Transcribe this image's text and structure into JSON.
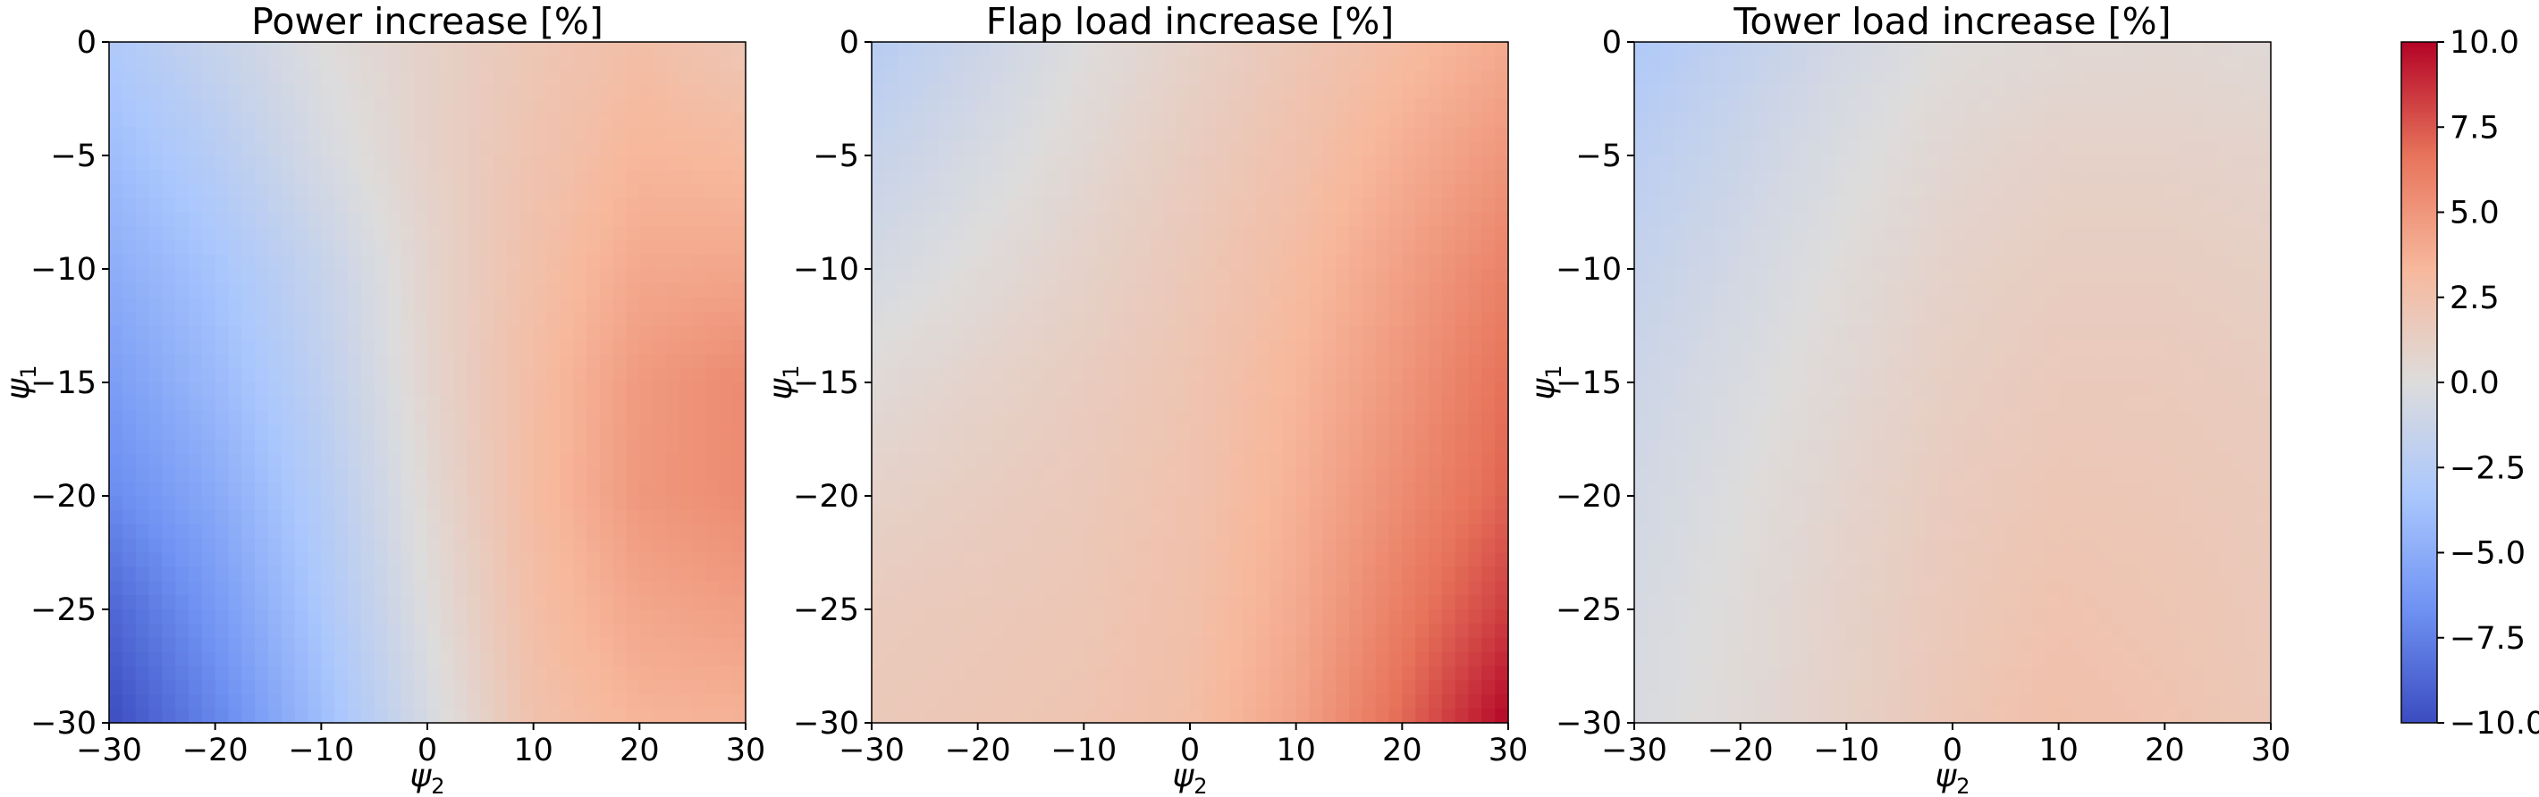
{
  "chart_data": [
    {
      "type": "heatmap",
      "title": "Power increase [%]",
      "xlabel": "ψ",
      "xlabel_sub": "2",
      "ylabel": "ψ",
      "ylabel_sub": "1",
      "xlim": [
        -30,
        30
      ],
      "ylim": [
        -30,
        0
      ],
      "x": [
        -30,
        -20,
        -10,
        0,
        10,
        20,
        30
      ],
      "y": [
        0,
        -5,
        -10,
        -15,
        -20,
        -25,
        -30
      ],
      "z": [
        [
          -3.0,
          -1.5,
          0.0,
          1.0,
          2.0,
          2.8,
          2.0
        ],
        [
          -4.0,
          -2.5,
          -0.5,
          1.0,
          2.3,
          3.4,
          3.2
        ],
        [
          -5.0,
          -3.5,
          -1.5,
          0.8,
          2.6,
          4.1,
          4.2
        ],
        [
          -6.0,
          -4.2,
          -2.0,
          0.7,
          2.9,
          4.8,
          5.6
        ],
        [
          -7.0,
          -5.2,
          -2.6,
          0.4,
          3.0,
          4.9,
          5.5
        ],
        [
          -8.8,
          -6.2,
          -3.2,
          0.0,
          2.8,
          4.2,
          4.6
        ],
        [
          -10.0,
          -7.3,
          -4.0,
          -0.5,
          2.5,
          3.5,
          3.6
        ]
      ],
      "xticks": [
        "−30",
        "−20",
        "−10",
        "0",
        "10",
        "20",
        "30"
      ],
      "yticks": [
        "0",
        "−5",
        "−10",
        "−15",
        "−20",
        "−25",
        "−30"
      ]
    },
    {
      "type": "heatmap",
      "title": "Flap load increase [%]",
      "xlabel": "ψ",
      "xlabel_sub": "2",
      "ylabel": "ψ",
      "ylabel_sub": "1",
      "xlim": [
        -30,
        30
      ],
      "ylim": [
        -30,
        0
      ],
      "x": [
        -30,
        -20,
        -10,
        0,
        10,
        20,
        30
      ],
      "y": [
        0,
        -5,
        -10,
        -15,
        -20,
        -25,
        -30
      ],
      "z": [
        [
          -2.5,
          -1.2,
          0.0,
          1.0,
          2.0,
          3.0,
          4.0
        ],
        [
          -1.5,
          -0.5,
          0.5,
          1.5,
          2.5,
          3.8,
          5.0
        ],
        [
          -0.6,
          0.2,
          1.0,
          1.9,
          3.0,
          4.5,
          6.0
        ],
        [
          0.3,
          0.9,
          1.5,
          2.2,
          3.4,
          5.0,
          6.8
        ],
        [
          1.0,
          1.4,
          1.8,
          2.4,
          3.7,
          5.5,
          7.2
        ],
        [
          1.6,
          1.8,
          2.0,
          2.6,
          4.0,
          6.2,
          8.3
        ],
        [
          1.8,
          2.0,
          2.2,
          2.8,
          4.4,
          7.0,
          10.0
        ]
      ],
      "xticks": [
        "−30",
        "−20",
        "−10",
        "0",
        "10",
        "20",
        "30"
      ],
      "yticks": [
        "0",
        "−5",
        "−10",
        "−15",
        "−20",
        "−25",
        "−30"
      ]
    },
    {
      "type": "heatmap",
      "title": "Tower load increase [%]",
      "xlabel": "ψ",
      "xlabel_sub": "2",
      "ylabel": "ψ",
      "ylabel_sub": "1",
      "xlim": [
        -30,
        30
      ],
      "ylim": [
        -30,
        0
      ],
      "x": [
        -30,
        -20,
        -10,
        0,
        10,
        20,
        30
      ],
      "y": [
        0,
        -5,
        -10,
        -15,
        -20,
        -25,
        -30
      ],
      "z": [
        [
          -3.0,
          -1.8,
          -0.7,
          0.1,
          0.4,
          0.5,
          0.3
        ],
        [
          -2.2,
          -1.2,
          -0.2,
          0.6,
          1.0,
          1.0,
          0.9
        ],
        [
          -1.6,
          -0.7,
          0.2,
          1.0,
          1.4,
          1.4,
          1.2
        ],
        [
          -1.1,
          -0.3,
          0.5,
          1.3,
          1.7,
          1.7,
          1.5
        ],
        [
          -0.8,
          0.0,
          0.8,
          1.6,
          2.0,
          1.9,
          1.7
        ],
        [
          -0.5,
          0.2,
          1.0,
          1.8,
          2.3,
          2.1,
          1.8
        ],
        [
          -0.3,
          0.3,
          1.1,
          2.0,
          2.6,
          2.3,
          1.9
        ]
      ],
      "xticks": [
        "−30",
        "−20",
        "−10",
        "0",
        "10",
        "20",
        "30"
      ],
      "yticks": [
        "0",
        "−5",
        "−10",
        "−15",
        "−20",
        "−25",
        "−30"
      ]
    }
  ],
  "colorbar": {
    "cmap": "coolwarm",
    "range": [
      -10,
      10
    ],
    "ticks": [
      "10.0",
      "7.5",
      "5.0",
      "2.5",
      "0.0",
      "−2.5",
      "−5.0",
      "−7.5",
      "−10.0"
    ],
    "colors": [
      "#3b4cc0",
      "#6f92f3",
      "#aac7fd",
      "#dddcdc",
      "#f7b89c",
      "#e7745b",
      "#b40426"
    ]
  }
}
